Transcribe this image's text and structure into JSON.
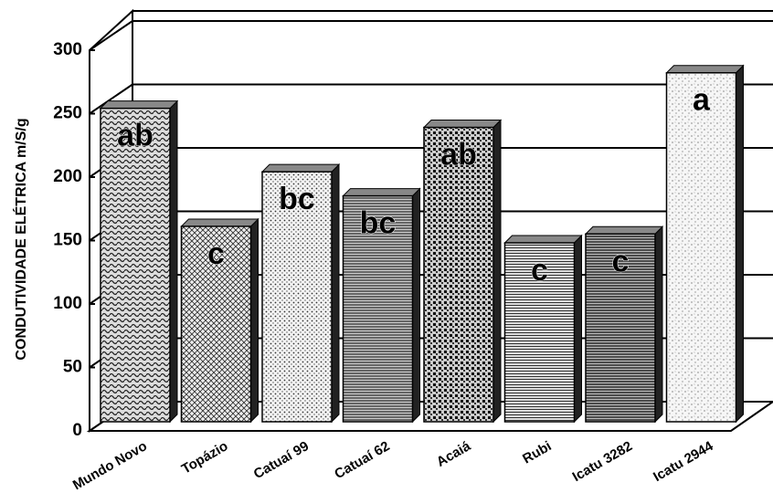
{
  "chart_data": {
    "type": "bar",
    "y_label": "CONDUTIVIDADE ELÉTRICA m/S/g",
    "categories": [
      "Mundo Novo",
      "Topázio",
      "Catuaí 99",
      "Catuaí 62",
      "Acaiá",
      "Rubi",
      "Icatu 3282",
      "Icatu 2944"
    ],
    "values": [
      247,
      154,
      197,
      178,
      232,
      141,
      148,
      275
    ],
    "annotations": [
      "ab",
      "c",
      "bc",
      "bc",
      "ab",
      "c",
      "c",
      "a"
    ],
    "ylim": [
      0,
      300
    ],
    "yticks": [
      0,
      50,
      100,
      150,
      200,
      250,
      300
    ],
    "grid": true
  }
}
